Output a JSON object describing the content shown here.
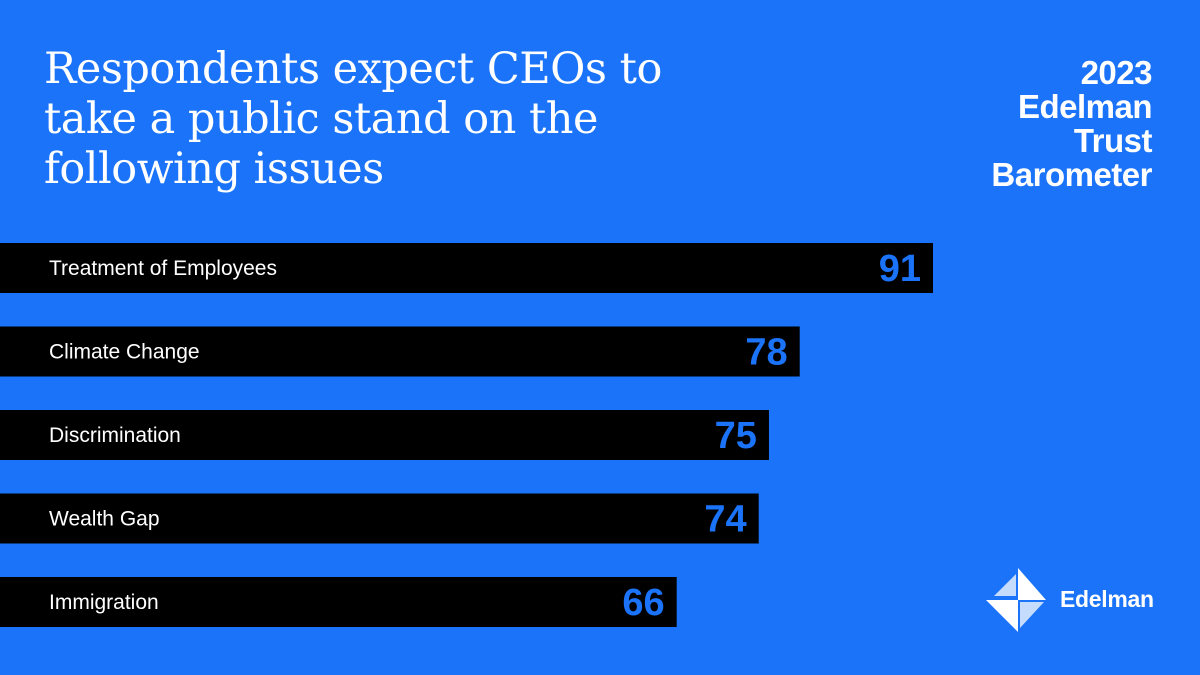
{
  "title": "Respondents expect CEOs to take a public stand on the following issues",
  "brand": {
    "report_lines": [
      "2023",
      "Edelman",
      "Trust",
      "Barometer"
    ],
    "logo_text": "Edelman"
  },
  "colors": {
    "background": "#1a73f8",
    "bar": "#000000",
    "label": "#ffffff",
    "value": "#1a73f8"
  },
  "chart_data": {
    "type": "bar",
    "orientation": "horizontal",
    "categories": [
      "Treatment of Employees",
      "Climate Change",
      "Discrimination",
      "Wealth Gap",
      "Immigration"
    ],
    "values": [
      91,
      78,
      75,
      74,
      66
    ],
    "title": "Respondents expect CEOs to take a public stand on the following issues",
    "xlabel": "",
    "ylabel": "",
    "grid": false,
    "legend": "none"
  }
}
